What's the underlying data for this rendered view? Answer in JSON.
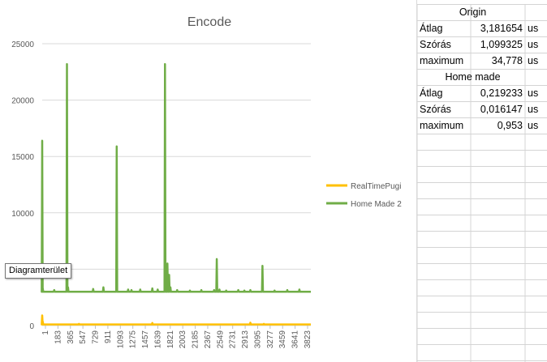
{
  "chart_data": {
    "type": "line",
    "title": "Encode",
    "xlabel": "",
    "ylabel": "",
    "ylim": [
      0,
      25000
    ],
    "yticks": [
      0,
      5000,
      10000,
      15000,
      20000,
      25000
    ],
    "x_tick_labels": [
      "1",
      "183",
      "365",
      "547",
      "729",
      "911",
      "1093",
      "1275",
      "1457",
      "1639",
      "1821",
      "2003",
      "2185",
      "2367",
      "2549",
      "2731",
      "2913",
      "3095",
      "3277",
      "3459",
      "3641",
      "3823"
    ],
    "x_range": [
      1,
      4000
    ],
    "grid": true,
    "legend_position": "right",
    "series": [
      {
        "name": "RealTimePugi",
        "color": "#FFC000",
        "baseline": 100,
        "peaks": [
          [
            1,
            900
          ],
          [
            10,
            350
          ],
          [
            548,
            150
          ],
          [
            1640,
            230
          ],
          [
            3100,
            260
          ],
          [
            3300,
            150
          ]
        ]
      },
      {
        "name": "Home Made 2",
        "color": "#70AD47",
        "baseline": 3000,
        "peaks": [
          [
            1,
            16400
          ],
          [
            10,
            3300
          ],
          [
            180,
            3150
          ],
          [
            370,
            23200
          ],
          [
            385,
            3400
          ],
          [
            760,
            3250
          ],
          [
            912,
            3400
          ],
          [
            1110,
            15900
          ],
          [
            1280,
            3200
          ],
          [
            1330,
            3150
          ],
          [
            1460,
            3200
          ],
          [
            1640,
            3300
          ],
          [
            1720,
            3200
          ],
          [
            1829,
            23200
          ],
          [
            1865,
            5500
          ],
          [
            1890,
            4500
          ],
          [
            1910,
            3400
          ],
          [
            2010,
            3150
          ],
          [
            2200,
            3100
          ],
          [
            2370,
            3150
          ],
          [
            2560,
            3150
          ],
          [
            2600,
            5900
          ],
          [
            2640,
            3200
          ],
          [
            2740,
            3100
          ],
          [
            2920,
            3150
          ],
          [
            3010,
            3100
          ],
          [
            3100,
            3150
          ],
          [
            3280,
            5300
          ],
          [
            3460,
            3100
          ],
          [
            3650,
            3150
          ],
          [
            3830,
            3200
          ]
        ]
      }
    ]
  },
  "tooltip": "Diagramterület",
  "table": {
    "origin_header": "Origin",
    "origin_rows": [
      {
        "label": "Átlag",
        "value": "3,181654",
        "unit": "us"
      },
      {
        "label": "Szórás",
        "value": "1,099325",
        "unit": "us"
      },
      {
        "label": "maximum",
        "value": "34,778",
        "unit": "us"
      }
    ],
    "home_header": "Home made",
    "home_rows": [
      {
        "label": "Átlag",
        "value": "0,219233",
        "unit": "us"
      },
      {
        "label": "Szórás",
        "value": "0,016147",
        "unit": "us"
      },
      {
        "label": "maximum",
        "value": "0,953",
        "unit": "us"
      }
    ]
  }
}
